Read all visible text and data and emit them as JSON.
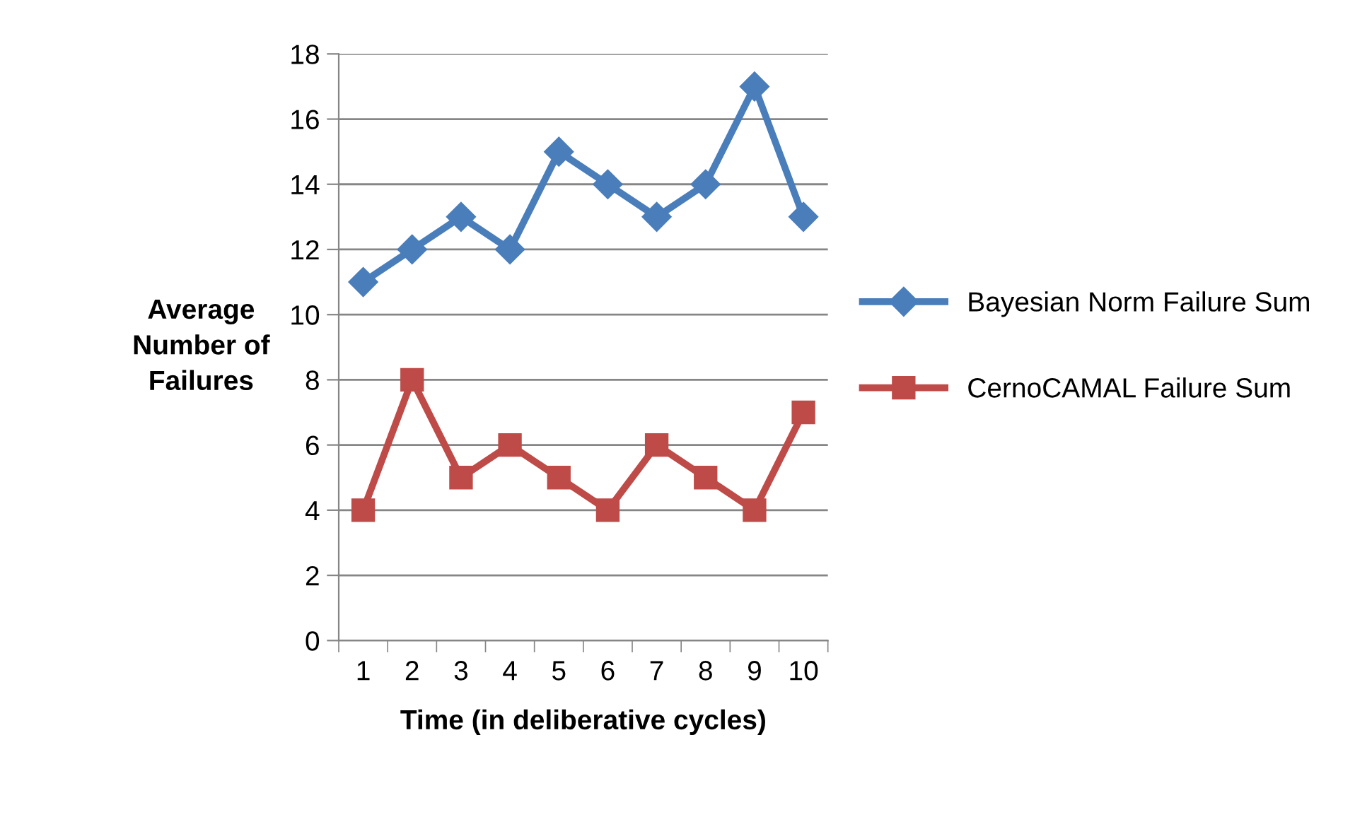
{
  "chart_data": {
    "type": "line",
    "xlabel": "Time (in deliberative cycles)",
    "ylabel": "Average Number of Failures",
    "categories": [
      "1",
      "2",
      "3",
      "4",
      "5",
      "6",
      "7",
      "8",
      "9",
      "10"
    ],
    "series": [
      {
        "name": "Bayesian Norm Failure Sum",
        "color": "#4a7ebb",
        "marker": "diamond",
        "values": [
          11,
          12,
          13,
          12,
          15,
          14,
          13,
          14,
          17,
          13
        ]
      },
      {
        "name": "CernoCAMAL Failure Sum",
        "color": "#be4b48",
        "marker": "square",
        "values": [
          4,
          8,
          5,
          6,
          5,
          4,
          6,
          5,
          4,
          7
        ]
      }
    ],
    "ylim": [
      0,
      18
    ],
    "yticks": [
      0,
      2,
      4,
      6,
      8,
      10,
      12,
      14,
      16,
      18
    ],
    "grid": "y",
    "legend": "right",
    "line_style": "solid"
  }
}
